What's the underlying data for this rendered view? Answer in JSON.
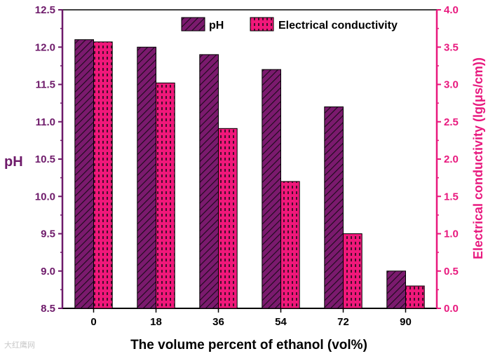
{
  "chart_data": {
    "type": "bar",
    "categories": [
      "0",
      "18",
      "36",
      "54",
      "72",
      "90"
    ],
    "series": [
      {
        "name": "pH",
        "axis": "left",
        "values": [
          12.1,
          12.0,
          11.9,
          11.7,
          11.2,
          9.0
        ]
      },
      {
        "name": "Electrical conductivity",
        "axis": "right",
        "values": [
          3.57,
          3.02,
          2.41,
          1.7,
          1.0,
          0.3
        ]
      }
    ],
    "xlabel": "The volume percent of ethanol (vol%)",
    "ylabel_left": "pH",
    "ylabel_right": "Electrical conductivity (lg(μs/cm))",
    "ylim_left": [
      8.5,
      12.5
    ],
    "ylim_right": [
      0.0,
      4.0
    ],
    "yticks_left": [
      "8.5",
      "9.0",
      "9.5",
      "10.0",
      "10.5",
      "11.0",
      "11.5",
      "12.0",
      "12.5"
    ],
    "yticks_right": [
      "0.0",
      "0.5",
      "1.0",
      "1.5",
      "2.0",
      "2.5",
      "3.0",
      "3.5",
      "4.0"
    ],
    "legend_position": "top-right",
    "colors": {
      "ph_fill": "#7b1a6e",
      "ec_fill": "#f0187a",
      "left_axis": "#6e1a6a",
      "right_axis": "#e8197e",
      "frame": "#000000"
    }
  },
  "watermark": "大红鹰网"
}
